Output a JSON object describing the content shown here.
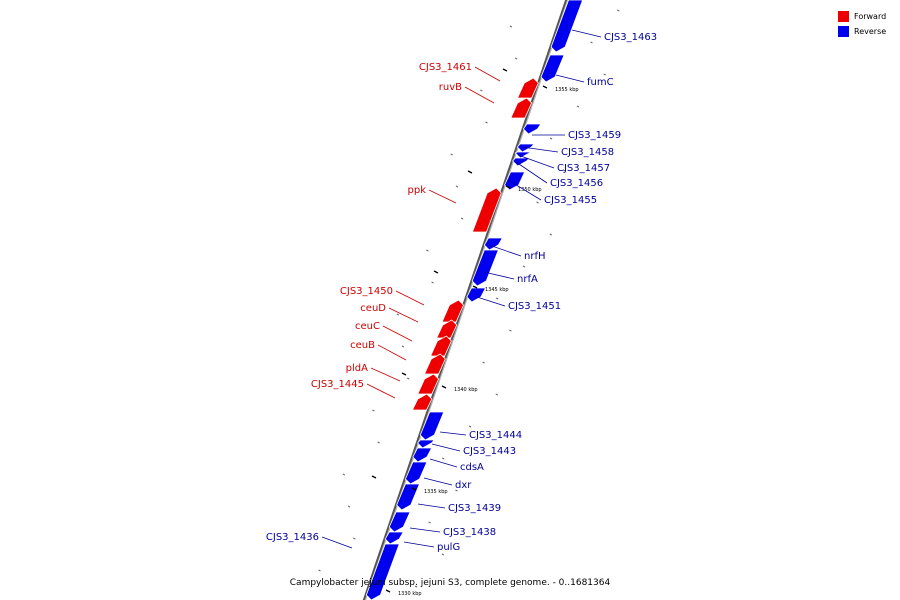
{
  "caption": "Campylobacter jejuni subsp. jejuni S3, complete genome. - 0..1681364",
  "legend": [
    {
      "label": "Forward",
      "color": "#ee0000"
    },
    {
      "label": "Reverse",
      "color": "#0000ee"
    }
  ],
  "colors": {
    "forward": "#ee0000",
    "reverse": "#0000ee",
    "axis": "#555555",
    "forward_label": "#cc0000",
    "reverse_label": "#000099"
  },
  "ruler_labels": [
    "1355 kbp",
    "1350 kbp",
    "1345 kbp",
    "1340 kbp",
    "1335 kbp",
    "1330 kbp"
  ],
  "genes": [
    {
      "name": "CJS3_1463",
      "strand": "reverse"
    },
    {
      "name": "fumC",
      "strand": "reverse"
    },
    {
      "name": "CJS3_1461",
      "strand": "forward"
    },
    {
      "name": "ruvB",
      "strand": "forward"
    },
    {
      "name": "CJS3_1459",
      "strand": "reverse"
    },
    {
      "name": "CJS3_1458",
      "strand": "reverse"
    },
    {
      "name": "CJS3_1457",
      "strand": "reverse"
    },
    {
      "name": "CJS3_1456",
      "strand": "reverse"
    },
    {
      "name": "CJS3_1455",
      "strand": "reverse"
    },
    {
      "name": "ppk",
      "strand": "forward"
    },
    {
      "name": "nrfH",
      "strand": "reverse"
    },
    {
      "name": "nrfA",
      "strand": "reverse"
    },
    {
      "name": "CJS3_1451",
      "strand": "reverse"
    },
    {
      "name": "CJS3_1450",
      "strand": "forward"
    },
    {
      "name": "ceuD",
      "strand": "forward"
    },
    {
      "name": "ceuC",
      "strand": "forward"
    },
    {
      "name": "ceuB",
      "strand": "forward"
    },
    {
      "name": "pldA",
      "strand": "forward"
    },
    {
      "name": "CJS3_1445",
      "strand": "forward"
    },
    {
      "name": "CJS3_1444",
      "strand": "reverse"
    },
    {
      "name": "CJS3_1443",
      "strand": "reverse"
    },
    {
      "name": "cdsA",
      "strand": "reverse"
    },
    {
      "name": "dxr",
      "strand": "reverse"
    },
    {
      "name": "CJS3_1439",
      "strand": "reverse"
    },
    {
      "name": "CJS3_1438",
      "strand": "reverse"
    },
    {
      "name": "pulG",
      "strand": "reverse"
    },
    {
      "name": "CJS3_1436",
      "strand": "reverse"
    }
  ]
}
